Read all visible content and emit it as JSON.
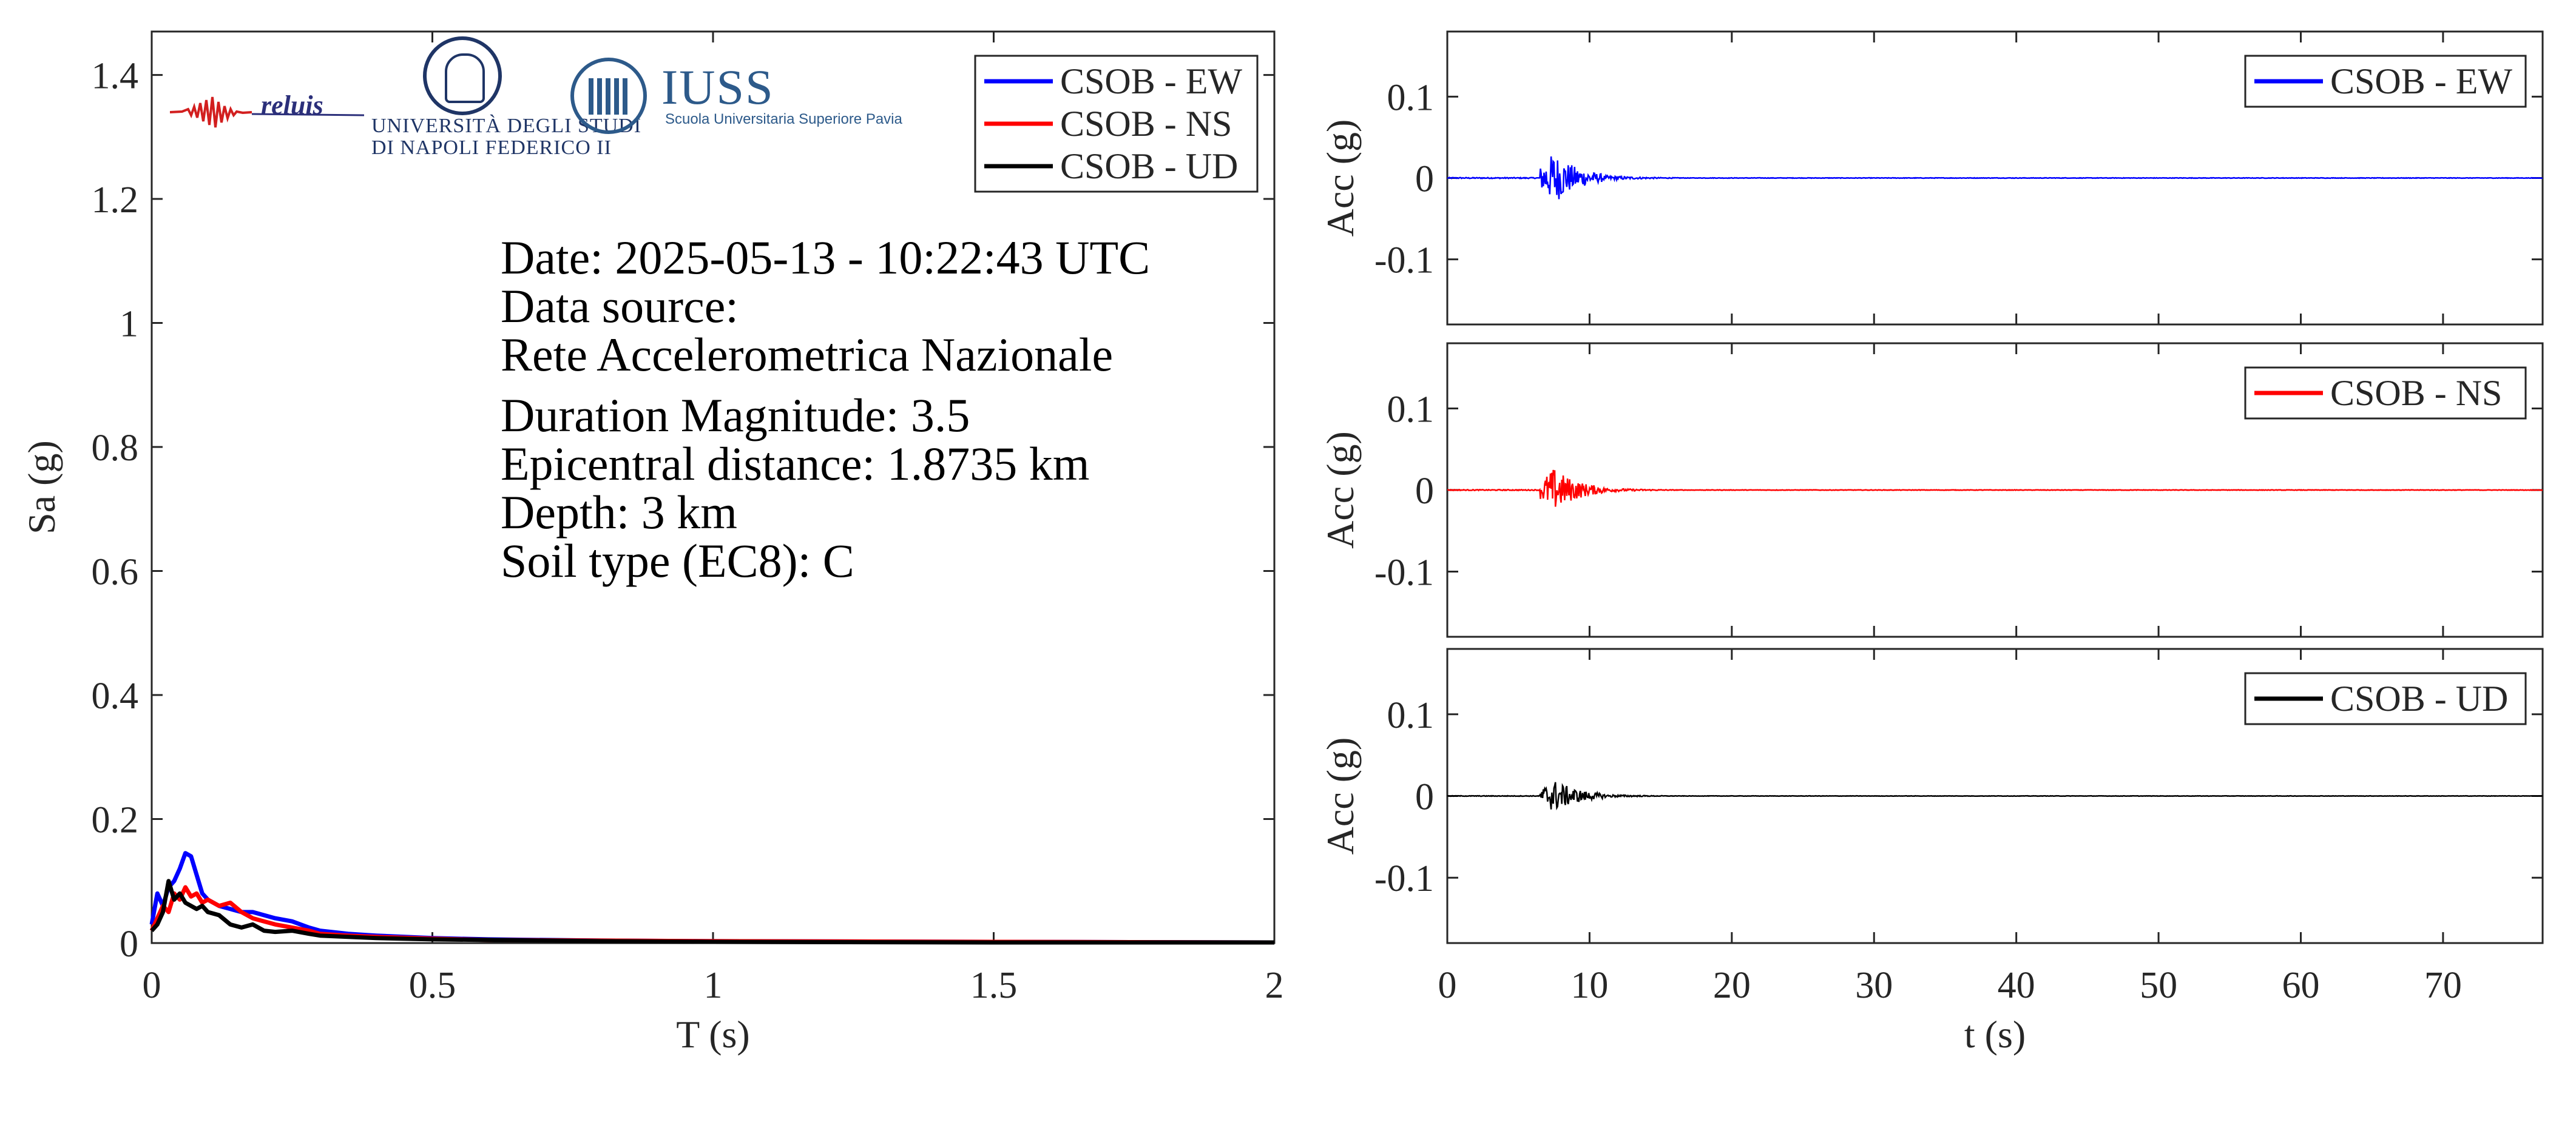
{
  "colors": {
    "ew": "#0000ff",
    "ns": "#ff0000",
    "ud": "#000000",
    "axis": "#262626"
  },
  "logos": {
    "reluis": "reluis",
    "univ_line1": "UNIVERSITÀ DEGLI STUDI",
    "univ_line2": "DI NAPOLI FEDERICO II",
    "iuss_name": "IUSS",
    "iuss_sub": "Scuola Universitaria Superiore Pavia"
  },
  "info": {
    "date": "Date: 2025-05-13 - 10:22:43 UTC",
    "data_source_label": "Data source:",
    "data_source": "Rete Accelerometrica Nazionale",
    "magnitude": "Duration Magnitude: 3.5",
    "distance": "Epicentral distance: 1.8735 km",
    "depth": "Depth: 3 km",
    "soil": "Soil type (EC8): C"
  },
  "chart_data": [
    {
      "type": "line",
      "xlabel": "T (s)",
      "ylabel": "Sa (g)",
      "xlim": [
        0,
        2
      ],
      "ylim": [
        0,
        1.47
      ],
      "xticks": [
        0,
        0.5,
        1,
        1.5,
        2
      ],
      "xtick_labels": [
        "0",
        "0.5",
        "1",
        "1.5",
        "2"
      ],
      "yticks": [
        0,
        0.2,
        0.4,
        0.6,
        0.8,
        1,
        1.2,
        1.4
      ],
      "ytick_labels": [
        "0",
        "0.2",
        "0.4",
        "0.6",
        "0.8",
        "1",
        "1.2",
        "1.4"
      ],
      "legend_position": "top-right",
      "grid": false,
      "series": [
        {
          "name": "CSOB - EW",
          "color": "#0000ff",
          "x": [
            0,
            0.01,
            0.02,
            0.03,
            0.04,
            0.05,
            0.06,
            0.07,
            0.08,
            0.09,
            0.1,
            0.12,
            0.14,
            0.16,
            0.18,
            0.2,
            0.22,
            0.25,
            0.28,
            0.3,
            0.35,
            0.4,
            0.5,
            0.6,
            0.8,
            1,
            1.5,
            2
          ],
          "y": [
            0.03,
            0.08,
            0.06,
            0.09,
            0.1,
            0.12,
            0.145,
            0.14,
            0.11,
            0.08,
            0.07,
            0.06,
            0.055,
            0.05,
            0.05,
            0.045,
            0.04,
            0.035,
            0.025,
            0.02,
            0.015,
            0.012,
            0.008,
            0.006,
            0.004,
            0.003,
            0.002,
            0.001
          ]
        },
        {
          "name": "CSOB - NS",
          "color": "#ff0000",
          "x": [
            0,
            0.01,
            0.02,
            0.03,
            0.04,
            0.05,
            0.06,
            0.07,
            0.08,
            0.09,
            0.1,
            0.12,
            0.14,
            0.16,
            0.18,
            0.2,
            0.22,
            0.25,
            0.28,
            0.3,
            0.35,
            0.4,
            0.5,
            0.6,
            0.8,
            1,
            1.5,
            2
          ],
          "y": [
            0.02,
            0.04,
            0.06,
            0.05,
            0.08,
            0.07,
            0.09,
            0.075,
            0.08,
            0.065,
            0.07,
            0.06,
            0.065,
            0.05,
            0.04,
            0.035,
            0.03,
            0.025,
            0.02,
            0.015,
            0.012,
            0.01,
            0.007,
            0.005,
            0.004,
            0.003,
            0.002,
            0.001
          ]
        },
        {
          "name": "CSOB - UD",
          "color": "#000000",
          "x": [
            0,
            0.01,
            0.02,
            0.03,
            0.04,
            0.05,
            0.06,
            0.07,
            0.08,
            0.09,
            0.1,
            0.12,
            0.14,
            0.16,
            0.18,
            0.2,
            0.22,
            0.25,
            0.28,
            0.3,
            0.35,
            0.4,
            0.5,
            0.6,
            0.8,
            1,
            1.5,
            2
          ],
          "y": [
            0.02,
            0.03,
            0.05,
            0.1,
            0.07,
            0.08,
            0.065,
            0.06,
            0.055,
            0.06,
            0.05,
            0.045,
            0.03,
            0.025,
            0.03,
            0.02,
            0.018,
            0.02,
            0.015,
            0.012,
            0.01,
            0.008,
            0.006,
            0.005,
            0.003,
            0.002,
            0.001,
            0.001
          ]
        }
      ]
    },
    {
      "type": "line",
      "xlabel": "",
      "ylabel": "Acc (g)",
      "xlim": [
        0,
        77
      ],
      "ylim": [
        -0.18,
        0.18
      ],
      "yticks": [
        -0.1,
        0,
        0.1
      ],
      "ytick_labels": [
        "-0.1",
        "0",
        "0.1"
      ],
      "legend_position": "top-right",
      "series": [
        {
          "name": "CSOB - EW",
          "color": "#0000ff",
          "peak_g": 0.032,
          "burst_start_s": 6.5,
          "burst_end_s": 11,
          "coda_end_s": 18,
          "record_end_s": 77
        }
      ]
    },
    {
      "type": "line",
      "xlabel": "",
      "ylabel": "Acc (g)",
      "xlim": [
        0,
        77
      ],
      "ylim": [
        -0.18,
        0.18
      ],
      "yticks": [
        -0.1,
        0,
        0.1
      ],
      "ytick_labels": [
        "-0.1",
        "0",
        "0.1"
      ],
      "legend_position": "top-right",
      "series": [
        {
          "name": "CSOB - NS",
          "color": "#ff0000",
          "peak_g": 0.027,
          "burst_start_s": 6.5,
          "burst_end_s": 11,
          "coda_end_s": 18,
          "record_end_s": 77
        }
      ]
    },
    {
      "type": "line",
      "xlabel": "t (s)",
      "ylabel": "Acc (g)",
      "xlim": [
        0,
        77
      ],
      "ylim": [
        -0.18,
        0.18
      ],
      "xticks": [
        0,
        10,
        20,
        30,
        40,
        50,
        60,
        70
      ],
      "xtick_labels": [
        "0",
        "10",
        "20",
        "30",
        "40",
        "50",
        "60",
        "70"
      ],
      "yticks": [
        -0.1,
        0,
        0.1
      ],
      "ytick_labels": [
        "-0.1",
        "0",
        "0.1"
      ],
      "legend_position": "top-right",
      "series": [
        {
          "name": "CSOB - UD",
          "color": "#000000",
          "peak_g": 0.02,
          "burst_start_s": 6.5,
          "burst_end_s": 11,
          "coda_end_s": 18,
          "record_end_s": 77
        }
      ]
    }
  ]
}
